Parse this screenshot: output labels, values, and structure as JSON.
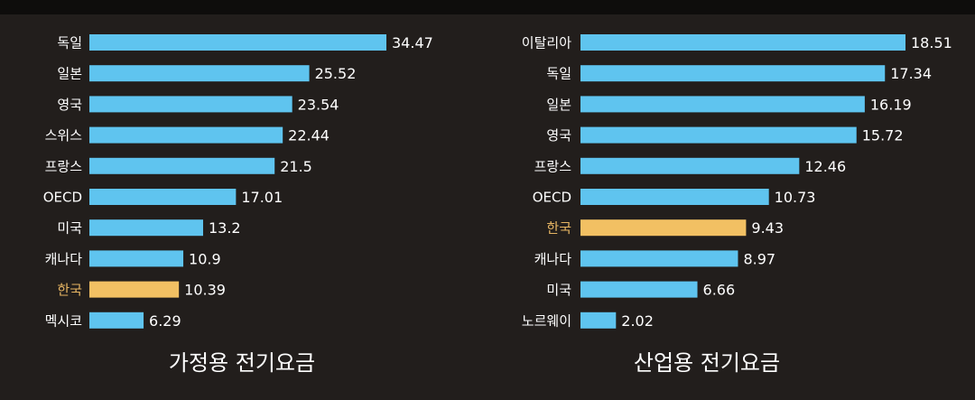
{
  "colors": {
    "background": "#221e1c",
    "bar": "#5fc4ef",
    "highlight_bar": "#f2c063",
    "highlight_text": "#e5b462",
    "text": "#ffffff"
  },
  "chart_data": [
    {
      "type": "bar",
      "orientation": "horizontal",
      "title": "가정용 전기요금",
      "categories": [
        "독일",
        "일본",
        "영국",
        "스위스",
        "프랑스",
        "OECD",
        "미국",
        "캐나다",
        "한국",
        "멕시코"
      ],
      "values": [
        34.47,
        25.52,
        23.54,
        22.44,
        21.5,
        17.01,
        13.2,
        10.9,
        10.39,
        6.29
      ],
      "value_labels": [
        "34.47",
        "25.52",
        "23.54",
        "22.44",
        "21.5",
        "17.01",
        "13.2",
        "10.9",
        "10.39",
        "6.29"
      ],
      "highlight": "한국",
      "xlim": [
        0,
        34.47
      ]
    },
    {
      "type": "bar",
      "orientation": "horizontal",
      "title": "산업용 전기요금",
      "categories": [
        "이탈리아",
        "독일",
        "일본",
        "영국",
        "프랑스",
        "OECD",
        "한국",
        "캐나다",
        "미국",
        "노르웨이"
      ],
      "values": [
        18.51,
        17.34,
        16.19,
        15.72,
        12.46,
        10.73,
        9.43,
        8.97,
        6.66,
        2.02
      ],
      "value_labels": [
        "18.51",
        "17.34",
        "16.19",
        "15.72",
        "12.46",
        "10.73",
        "9.43",
        "8.97",
        "6.66",
        "2.02"
      ],
      "highlight": "한국",
      "xlim": [
        0,
        18.51
      ]
    }
  ]
}
